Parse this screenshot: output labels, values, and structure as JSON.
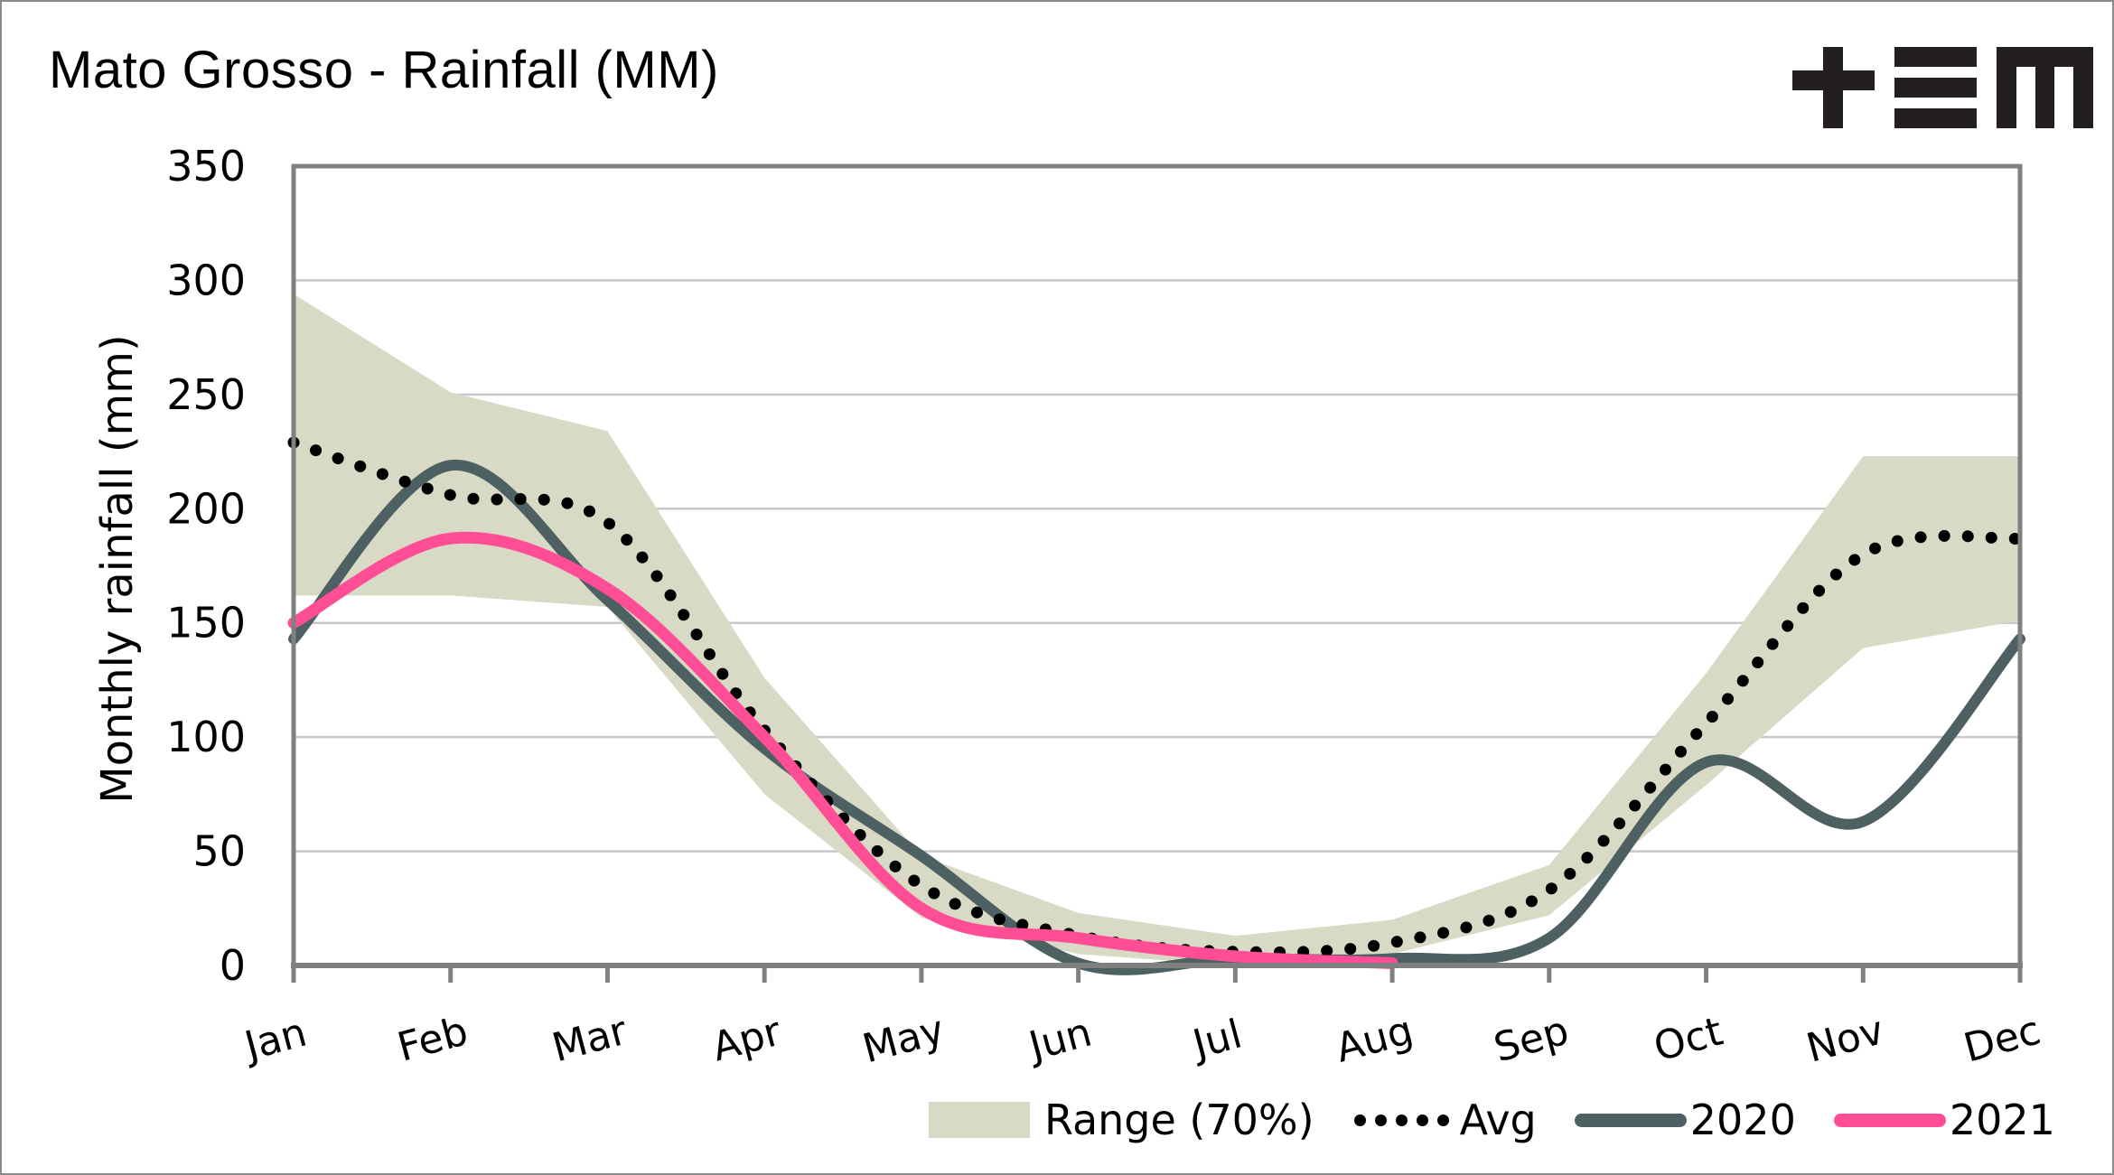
{
  "header": {
    "title": "Mato Grosso - Rainfall (MM)",
    "logo": "+EM logo"
  },
  "colors": {
    "range": "#d9dac5",
    "avg": "#000000",
    "y2020": "#4d6062",
    "y2021": "#ff4d96",
    "grid": "#c8c8c8",
    "axis": "#808080"
  },
  "chart_data": {
    "type": "line",
    "title": "Mato Grosso - Rainfall (MM)",
    "xlabel": "",
    "ylabel": "Monthly rainfall (mm)",
    "ylim": [
      0,
      350
    ],
    "yticks": [
      0,
      50,
      100,
      150,
      200,
      250,
      300,
      350
    ],
    "grid": true,
    "legend_position": "bottom-right",
    "categories": [
      "Jan",
      "Feb",
      "Mar",
      "Apr",
      "May",
      "Jun",
      "Jul",
      "Aug",
      "Sep",
      "Oct",
      "Nov",
      "Dec"
    ],
    "range": {
      "name": "Range (70%)",
      "upper": [
        294,
        251,
        234,
        126,
        48,
        23,
        13,
        20,
        44,
        128,
        223,
        223
      ],
      "lower": [
        162,
        162,
        157,
        75,
        21,
        5,
        0,
        5,
        22,
        79,
        139,
        151
      ]
    },
    "series": [
      {
        "name": "Avg",
        "style": "dotted",
        "values": [
          229,
          206,
          194,
          103,
          35,
          13,
          6,
          10,
          33,
          106,
          180,
          187
        ]
      },
      {
        "name": "2020",
        "style": "solid",
        "values": [
          143,
          219,
          160,
          95,
          48,
          1,
          3,
          3,
          12,
          89,
          63,
          143
        ]
      },
      {
        "name": "2021",
        "style": "solid",
        "values": [
          150,
          187,
          165,
          100,
          25,
          12,
          4,
          1
        ]
      }
    ]
  },
  "legend": {
    "range_label": "Range (70%)",
    "avg_label": "Avg",
    "y2020_label": "2020",
    "y2021_label": "2021"
  }
}
